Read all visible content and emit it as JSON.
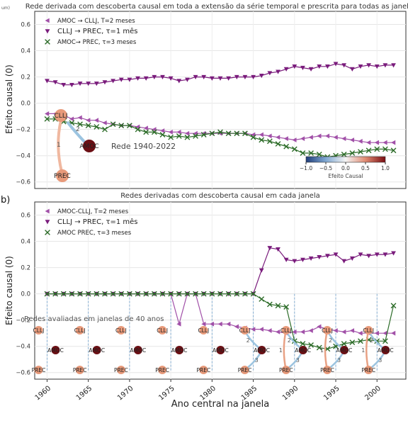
{
  "figure_label_b": "b)",
  "cropped_label_a": "um)",
  "xlabel_shared": "Ano central na janela",
  "window_note": "Redes avaliadas em janelas de 40 anos",
  "chart_data": [
    {
      "panel": "a",
      "type": "line",
      "title": "Rede derivada com descoberta causal em toda a extensão da série temporal e prescrita para todas as janelas",
      "ylabel": "Efeito causal (0)",
      "xlabel": "",
      "ylim": [
        -0.65,
        0.7
      ],
      "xlim": [
        1958.5,
        2003.5
      ],
      "yticks": [
        0.6,
        0.4,
        0.2,
        0.0,
        -0.2,
        -0.4,
        -0.6
      ],
      "grid": true,
      "legend_position": "top-left",
      "x": [
        1960,
        1961,
        1962,
        1963,
        1964,
        1965,
        1966,
        1967,
        1968,
        1969,
        1970,
        1971,
        1972,
        1973,
        1974,
        1975,
        1976,
        1977,
        1978,
        1979,
        1980,
        1981,
        1982,
        1983,
        1984,
        1985,
        1986,
        1987,
        1988,
        1989,
        1990,
        1991,
        1992,
        1993,
        1994,
        1995,
        1996,
        1997,
        1998,
        1999,
        2000,
        2001,
        2002
      ],
      "series": [
        {
          "name": "AMOC → CLLJ, T=2 meses",
          "color": "#a150a8",
          "marker": "triangle-left",
          "values": [
            -0.08,
            -0.08,
            -0.09,
            -0.12,
            -0.11,
            -0.13,
            -0.13,
            -0.15,
            -0.16,
            -0.17,
            -0.17,
            -0.18,
            -0.19,
            -0.2,
            -0.21,
            -0.22,
            -0.22,
            -0.23,
            -0.23,
            -0.23,
            -0.23,
            -0.23,
            -0.23,
            -0.23,
            -0.23,
            -0.24,
            -0.24,
            -0.25,
            -0.26,
            -0.27,
            -0.28,
            -0.27,
            -0.26,
            -0.25,
            -0.25,
            -0.26,
            -0.27,
            -0.28,
            -0.29,
            -0.3,
            -0.3,
            -0.3,
            -0.3
          ]
        },
        {
          "name": "CLLJ → PREC, τ=1 mês",
          "color": "#7a1c7c",
          "marker": "triangle-down",
          "values": [
            0.17,
            0.16,
            0.14,
            0.14,
            0.15,
            0.15,
            0.15,
            0.16,
            0.17,
            0.18,
            0.18,
            0.19,
            0.19,
            0.2,
            0.2,
            0.19,
            0.17,
            0.18,
            0.2,
            0.2,
            0.19,
            0.19,
            0.19,
            0.2,
            0.2,
            0.2,
            0.21,
            0.23,
            0.24,
            0.26,
            0.28,
            0.27,
            0.26,
            0.28,
            0.28,
            0.3,
            0.29,
            0.26,
            0.28,
            0.29,
            0.28,
            0.29,
            0.29
          ]
        },
        {
          "name": "AMOC→ PREC, τ=3 meses",
          "color": "#2b6b27",
          "marker": "x",
          "values": [
            -0.12,
            -0.12,
            -0.14,
            -0.15,
            -0.16,
            -0.17,
            -0.18,
            -0.2,
            -0.16,
            -0.17,
            -0.17,
            -0.2,
            -0.22,
            -0.22,
            -0.24,
            -0.26,
            -0.25,
            -0.26,
            -0.25,
            -0.24,
            -0.23,
            -0.22,
            -0.23,
            -0.23,
            -0.23,
            -0.26,
            -0.28,
            -0.29,
            -0.31,
            -0.33,
            -0.35,
            -0.38,
            -0.38,
            -0.39,
            -0.41,
            -0.4,
            -0.39,
            -0.38,
            -0.37,
            -0.36,
            -0.35,
            -0.35,
            -0.36
          ]
        }
      ],
      "inset_network": {
        "label": "Rede 1940-2022",
        "nodes": [
          "CLLJ",
          "AMOC",
          "PREC"
        ],
        "edges": [
          {
            "from": "AMOC",
            "to": "CLLJ",
            "lag_label": "2"
          },
          {
            "from": "CLLJ",
            "to": "PREC",
            "lag_label": "1"
          }
        ]
      },
      "colorbar": {
        "label": "Efeito Causal",
        "range": [
          -1.0,
          1.0
        ],
        "ticks": [
          "−1.0",
          "−0.5",
          "0.0",
          "0.5",
          "1.0"
        ]
      }
    },
    {
      "panel": "b",
      "type": "line",
      "title": "Redes derivadas com descoberta causal em cada janela",
      "ylabel": "Efeito causal (0)",
      "xlabel": "Ano central na janela",
      "ylim": [
        -0.65,
        0.7
      ],
      "xlim": [
        1958.5,
        2003.5
      ],
      "yticks": [
        0.6,
        0.4,
        0.2,
        0.0,
        -0.2,
        -0.4,
        -0.6
      ],
      "xticks": [
        1960,
        1965,
        1970,
        1975,
        1980,
        1985,
        1990,
        1995,
        2000
      ],
      "grid": true,
      "legend_position": "top-left",
      "x": [
        1960,
        1961,
        1962,
        1963,
        1964,
        1965,
        1966,
        1967,
        1968,
        1969,
        1970,
        1971,
        1972,
        1973,
        1974,
        1975,
        1976,
        1977,
        1978,
        1979,
        1980,
        1981,
        1982,
        1983,
        1984,
        1985,
        1986,
        1987,
        1988,
        1989,
        1990,
        1991,
        1992,
        1993,
        1994,
        1995,
        1996,
        1997,
        1998,
        1999,
        2000,
        2001,
        2002
      ],
      "series": [
        {
          "name": "AMOC-CLLJ, T=2 meses",
          "color": "#a150a8",
          "marker": "triangle-left",
          "values": [
            0,
            0,
            0,
            0,
            0,
            0,
            0,
            0,
            0,
            0,
            0,
            0,
            0,
            0,
            0,
            0,
            -0.23,
            0,
            0,
            -0.23,
            -0.23,
            -0.23,
            -0.23,
            -0.25,
            -0.26,
            -0.27,
            -0.27,
            -0.28,
            -0.29,
            -0.3,
            -0.29,
            -0.29,
            -0.28,
            -0.25,
            -0.27,
            -0.28,
            -0.29,
            -0.28,
            -0.3,
            -0.3,
            -0.3,
            -0.3,
            -0.3
          ]
        },
        {
          "name": "CLLJ → PREC, τ=1 mês",
          "color": "#7a1c7c",
          "marker": "triangle-down",
          "values": [
            0,
            0,
            0,
            0,
            0,
            0,
            0,
            0,
            0,
            0,
            0,
            0,
            0,
            0,
            0,
            0,
            0,
            0,
            0,
            0,
            0,
            0,
            0,
            0,
            0,
            0,
            0.18,
            0.35,
            0.34,
            0.26,
            0.25,
            0.26,
            0.27,
            0.28,
            0.29,
            0.3,
            0.25,
            0.27,
            0.3,
            0.29,
            0.3,
            0.3,
            0.31
          ]
        },
        {
          "name": "AMOC PREC, τ=3 meses",
          "color": "#2b6b27",
          "marker": "x",
          "values": [
            0,
            0,
            0,
            0,
            0,
            0,
            0,
            0,
            0,
            0,
            0,
            0,
            0,
            0,
            0,
            0,
            0,
            0,
            0,
            0,
            0,
            0,
            0,
            0,
            0,
            0,
            -0.04,
            -0.08,
            -0.09,
            -0.1,
            -0.36,
            -0.38,
            -0.39,
            -0.41,
            -0.42,
            -0.4,
            -0.38,
            -0.37,
            -0.36,
            -0.35,
            -0.36,
            -0.36,
            -0.09
          ]
        }
      ],
      "network_windows": [
        {
          "year": 1960,
          "nodes": [
            "CLLJ",
            "AMOC",
            "PREC"
          ],
          "edges": []
        },
        {
          "year": 1965,
          "nodes": [
            "CLLJ",
            "AMOC",
            "PREC"
          ],
          "edges": []
        },
        {
          "year": 1970,
          "nodes": [
            "CLLJ",
            "AMOC",
            "PREC"
          ],
          "edges": []
        },
        {
          "year": 1975,
          "nodes": [
            "CLLJ",
            "AMOC",
            "PREC"
          ],
          "edges": []
        },
        {
          "year": 1980,
          "nodes": [
            "CLLJ",
            "AMOC",
            "PREC"
          ],
          "edges": []
        },
        {
          "year": 1985,
          "nodes": [
            "CLLJ",
            "AMOC",
            "PREC"
          ],
          "edges": [
            {
              "from": "AMOC",
              "to": "PREC",
              "lag_label": "3"
            },
            {
              "from": "AMOC",
              "to": "CLLJ",
              "lag_label": "2"
            }
          ]
        },
        {
          "year": 1990,
          "nodes": [
            "CLLJ",
            "AMOC",
            "PREC"
          ],
          "edges": [
            {
              "from": "AMOC",
              "to": "CLLJ",
              "lag_label": "2"
            },
            {
              "from": "CLLJ",
              "to": "PREC",
              "lag_label": "1"
            },
            {
              "from": "AMOC",
              "to": "PREC",
              "lag_label": "3"
            }
          ]
        },
        {
          "year": 1995,
          "nodes": [
            "CLLJ",
            "AMOC",
            "PREC"
          ],
          "edges": [
            {
              "from": "AMOC",
              "to": "CLLJ",
              "lag_label": "2"
            },
            {
              "from": "CLLJ",
              "to": "PREC",
              "lag_label": "1"
            },
            {
              "from": "AMOC",
              "to": "PREC",
              "lag_label": "3"
            }
          ]
        },
        {
          "year": 2000,
          "nodes": [
            "CLLJ",
            "AMOC",
            "PREC"
          ],
          "edges": [
            {
              "from": "AMOC",
              "to": "CLLJ",
              "lag_label": "2"
            },
            {
              "from": "CLLJ",
              "to": "PREC",
              "lag_label": "1"
            },
            {
              "from": "AMOC",
              "to": "PREC",
              "lag_label": "3"
            }
          ]
        }
      ]
    }
  ]
}
